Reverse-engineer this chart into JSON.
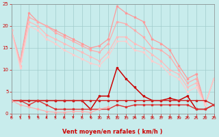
{
  "background_color": "#c8ecec",
  "grid_color": "#a0cccc",
  "xlabel": "Vent moyen/en rafales ( km/h )",
  "xlabel_color": "#cc0000",
  "tick_color": "#cc0000",
  "spine_color": "#888888",
  "xmin": 0,
  "xmax": 23,
  "ymin": 0,
  "ymax": 25,
  "yticks": [
    0,
    5,
    10,
    15,
    20,
    25
  ],
  "xticks": [
    0,
    1,
    2,
    3,
    4,
    5,
    6,
    7,
    8,
    9,
    10,
    11,
    12,
    13,
    14,
    15,
    16,
    17,
    18,
    19,
    20,
    21,
    22,
    23
  ],
  "lines": [
    {
      "x": [
        0,
        1,
        2,
        3,
        4,
        5,
        6,
        7,
        8,
        9,
        10,
        11,
        12,
        13,
        14,
        15,
        16,
        17,
        18,
        19,
        20,
        21,
        22,
        23
      ],
      "y": [
        19,
        12,
        23,
        21,
        20,
        19,
        18,
        17,
        16,
        15,
        15.5,
        17,
        24.5,
        23,
        22,
        21,
        17,
        16,
        14.5,
        11,
        8,
        9,
        2,
        8
      ],
      "color": "#ff9999",
      "lw": 0.9,
      "marker": "s",
      "ms": 1.8
    },
    {
      "x": [
        0,
        1,
        2,
        3,
        4,
        5,
        6,
        7,
        8,
        9,
        10,
        11,
        12,
        13,
        14,
        15,
        16,
        17,
        18,
        19,
        20,
        21,
        22,
        23
      ],
      "y": [
        19,
        12,
        22,
        21,
        20,
        18.5,
        17.5,
        16.5,
        15.5,
        14.5,
        14,
        16,
        21,
        20.5,
        19,
        17.5,
        15,
        14.5,
        13,
        10,
        7,
        8,
        2,
        8
      ],
      "color": "#ffaaaa",
      "lw": 0.9,
      "marker": "s",
      "ms": 1.8
    },
    {
      "x": [
        0,
        1,
        2,
        3,
        4,
        5,
        6,
        7,
        8,
        9,
        10,
        11,
        12,
        13,
        14,
        15,
        16,
        17,
        18,
        19,
        20,
        21,
        22,
        23
      ],
      "y": [
        19,
        11,
        21,
        20,
        18,
        17,
        16,
        15,
        14,
        13,
        12,
        14,
        17.5,
        17.5,
        16,
        15,
        13.5,
        12,
        10,
        9,
        6,
        7,
        2,
        8
      ],
      "color": "#ffbbbb",
      "lw": 0.9,
      "marker": "s",
      "ms": 1.8
    },
    {
      "x": [
        0,
        1,
        2,
        3,
        4,
        5,
        6,
        7,
        8,
        9,
        10,
        11,
        12,
        13,
        14,
        15,
        16,
        17,
        18,
        19,
        20,
        21,
        22,
        23
      ],
      "y": [
        19,
        10.5,
        20,
        19,
        17,
        16,
        14.5,
        13.5,
        12.5,
        11.5,
        11,
        13,
        16.5,
        16.5,
        14.5,
        14,
        12,
        11,
        9,
        8,
        5,
        6,
        2,
        8
      ],
      "color": "#ffcccc",
      "lw": 0.9,
      "marker": "s",
      "ms": 1.8
    },
    {
      "x": [
        0,
        1,
        2,
        3,
        4,
        5,
        6,
        7,
        8,
        9,
        10,
        11,
        12,
        13,
        14,
        15,
        16,
        17,
        18,
        19,
        20,
        21,
        22,
        23
      ],
      "y": [
        3,
        3,
        3,
        3,
        3,
        3,
        3,
        3,
        3,
        1,
        4,
        4,
        10.5,
        8,
        6,
        4,
        3,
        3,
        3.5,
        3,
        4,
        1,
        1,
        2
      ],
      "color": "#cc0000",
      "lw": 1.1,
      "marker": "s",
      "ms": 2.0
    },
    {
      "x": [
        0,
        1,
        2,
        3,
        4,
        5,
        6,
        7,
        8,
        9,
        10,
        11,
        12,
        13,
        14,
        15,
        16,
        17,
        18,
        19,
        20,
        21,
        22,
        23
      ],
      "y": [
        3,
        3,
        3,
        3,
        3,
        3,
        3,
        3,
        3,
        3,
        3,
        3,
        3,
        3,
        3,
        3,
        3,
        3,
        3,
        3,
        3,
        3,
        3,
        2
      ],
      "color": "#cc2222",
      "lw": 1.0,
      "marker": "s",
      "ms": 1.8
    },
    {
      "x": [
        0,
        1,
        2,
        3,
        4,
        5,
        6,
        7,
        8,
        9,
        10,
        11,
        12,
        13,
        14,
        15,
        16,
        17,
        18,
        19,
        20,
        21,
        22,
        23
      ],
      "y": [
        3,
        3,
        2,
        3,
        2,
        1,
        1,
        1,
        1,
        1,
        1,
        1,
        2,
        1.5,
        2,
        2,
        2,
        2,
        2,
        2,
        2,
        1,
        1,
        2
      ],
      "color": "#dd3333",
      "lw": 1.0,
      "marker": "s",
      "ms": 1.8
    },
    {
      "x": [
        0,
        1,
        2,
        3,
        4,
        5,
        6,
        7,
        8,
        9,
        10,
        11
      ],
      "y": [
        3,
        2,
        1.5,
        1,
        0.5,
        0.3,
        0.3,
        0.5,
        0.5,
        0.3,
        1,
        1.5
      ],
      "color": "#ffaaaa",
      "lw": 0.8,
      "marker": "s",
      "ms": 1.5
    }
  ]
}
